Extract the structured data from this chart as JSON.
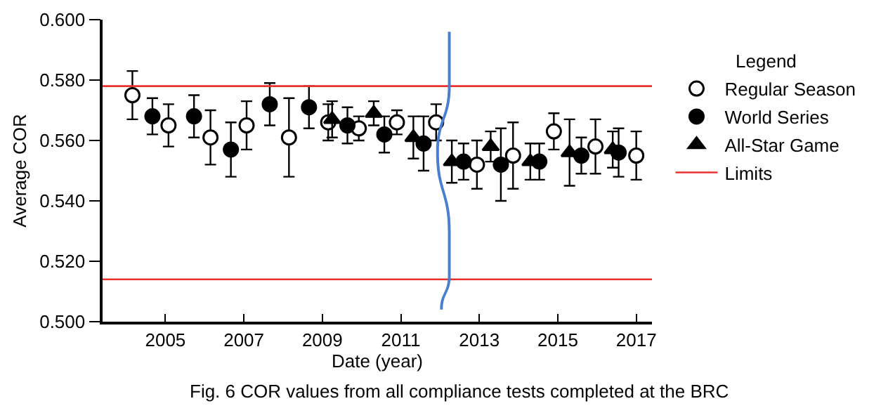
{
  "chart_data": {
    "type": "scatter",
    "xlabel": "Date (year)",
    "ylabel": "Average COR",
    "legend_title": "Legend",
    "legend": "right",
    "grid": false,
    "annotations": [
      "Fig. 6 COR values from all compliance tests completed at the BRC"
    ],
    "xlim": [
      2003.4,
      2017.4
    ],
    "xticks": [
      2005,
      2007,
      2009,
      2011,
      2013,
      2015,
      2017
    ],
    "ylim": [
      0.5,
      0.6
    ],
    "yticks": [
      {
        "value": 0.5,
        "label": "0.500"
      },
      {
        "value": 0.52,
        "label": "0.520"
      },
      {
        "value": 0.54,
        "label": "0.540"
      },
      {
        "value": 0.56,
        "label": "0.560"
      },
      {
        "value": 0.58,
        "label": "0.580"
      },
      {
        "value": 0.6,
        "label": "0.600"
      }
    ],
    "series": [
      {
        "name": "Regular Season",
        "color": "#ffffff",
        "marker": "circle",
        "x": [
          2004.16,
          2005.08,
          2006.15,
          2007.07,
          2008.15,
          2009.15,
          2009.93,
          2010.9,
          2011.9,
          2012.94,
          2013.86,
          2014.9,
          2015.96,
          2017.0
        ],
        "values": [
          0.575,
          0.565,
          0.561,
          0.565,
          0.561,
          0.566,
          0.564,
          0.566,
          0.566,
          0.552,
          0.555,
          0.563,
          0.558,
          0.555
        ],
        "errors": [
          0.008,
          0.007,
          0.009,
          0.008,
          0.013,
          0.006,
          0.004,
          0.004,
          0.006,
          0.008,
          0.011,
          0.006,
          0.009,
          0.008
        ]
      },
      {
        "name": "World Series",
        "color": "#000000",
        "marker": "circle",
        "x": [
          2004.67,
          2005.73,
          2006.67,
          2007.66,
          2008.66,
          2009.64,
          2010.58,
          2011.58,
          2012.6,
          2013.55,
          2014.53,
          2015.6,
          2016.55
        ],
        "values": [
          0.568,
          0.568,
          0.557,
          0.572,
          0.571,
          0.565,
          0.562,
          0.559,
          0.553,
          0.552,
          0.553,
          0.555,
          0.556
        ],
        "errors": [
          0.006,
          0.007,
          0.009,
          0.007,
          0.007,
          0.006,
          0.006,
          0.009,
          0.006,
          0.012,
          0.006,
          0.006,
          0.008
        ]
      },
      {
        "name": "All-Star Game",
        "color": "#000000",
        "marker": "triangle",
        "x": [
          2009.25,
          2010.31,
          2011.32,
          2012.3,
          2013.29,
          2014.3,
          2015.3,
          2016.4
        ],
        "values": [
          0.567,
          0.569,
          0.561,
          0.553,
          0.558,
          0.553,
          0.556,
          0.557
        ],
        "errors": [
          0.006,
          0.004,
          0.007,
          0.007,
          0.005,
          0.006,
          0.011,
          0.006
        ]
      }
    ],
    "ref_lines": [
      {
        "axis": "y",
        "value": 0.578,
        "label": "Limits",
        "color": "#e8322e"
      },
      {
        "axis": "y",
        "value": 0.514,
        "color": "#e8322e"
      }
    ]
  }
}
